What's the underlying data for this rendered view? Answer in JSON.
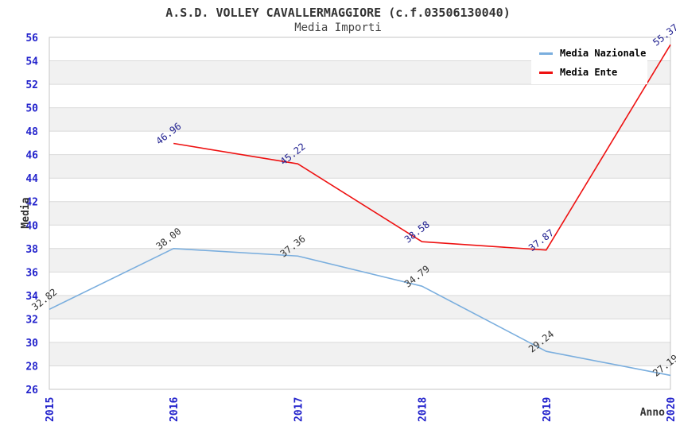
{
  "title": "A.S.D. VOLLEY CAVALLERMAGGIORE (c.f.03506130040)",
  "subtitle": "Media Importi",
  "colors": {
    "background": "#ffffff",
    "band_gray": "#f1f1f1",
    "gridline": "#d9d9d9",
    "plot_border": "#c6c6c6",
    "tick_label": "#2323cc",
    "axis_title": "#333333",
    "series_nazionale": "#7aaede",
    "series_ente": "#ee1111",
    "label_nazionale": "#333333",
    "label_ente": "#202090"
  },
  "legend": {
    "items": [
      {
        "label": "Media Nazionale",
        "color": "#7aaede"
      },
      {
        "label": "Media Ente",
        "color": "#ee1111"
      }
    ]
  },
  "chart_data": {
    "type": "line",
    "x": [
      2015,
      2016,
      2017,
      2018,
      2019,
      2020
    ],
    "xlabel": "Anno",
    "ylabel": "Media",
    "ylim": [
      26,
      56
    ],
    "ytick_step": 2,
    "grid": "horizontal-bands",
    "legend_position": "top-right",
    "series": [
      {
        "name": "Media Nazionale",
        "color": "#7aaede",
        "label_color": "#333333",
        "values": [
          32.82,
          38.0,
          37.36,
          34.79,
          29.24,
          27.19
        ]
      },
      {
        "name": "Media Ente",
        "color": "#ee1111",
        "label_color": "#202090",
        "values": [
          null,
          46.96,
          45.22,
          38.58,
          37.87,
          55.37
        ]
      }
    ]
  }
}
